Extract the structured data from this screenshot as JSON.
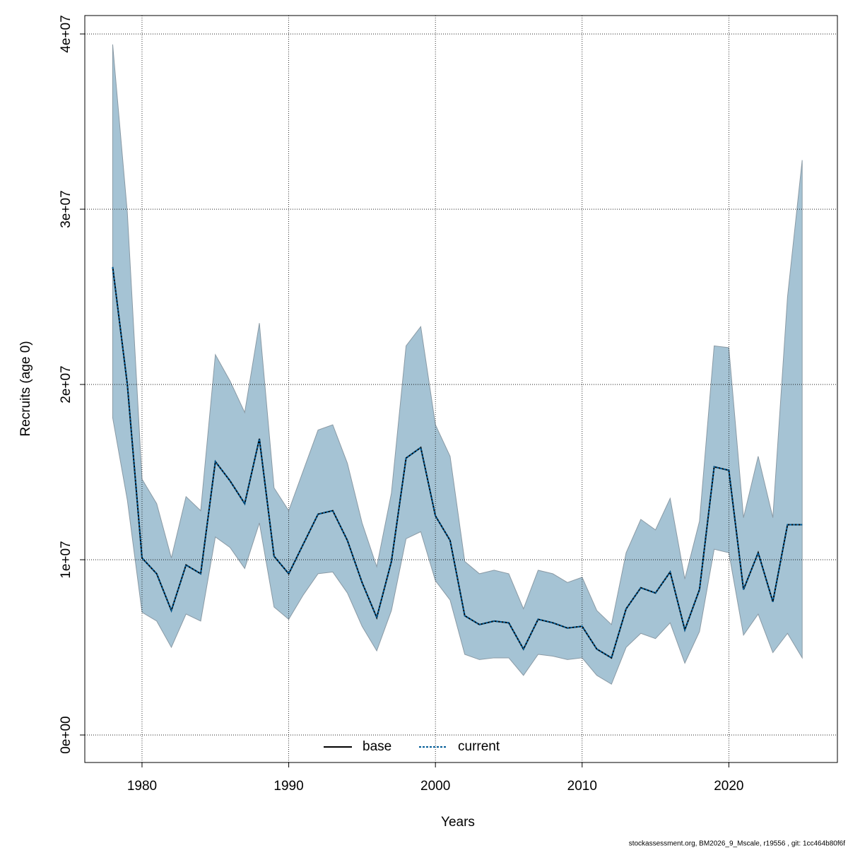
{
  "chart_data": {
    "type": "line",
    "x_label": "Years",
    "y_label": "Recruits (age 0)",
    "footer": "stockassessment.org, BM2026_9_Mscale, r19556 , git: 1cc464b80f6f",
    "x": [
      1978,
      1979,
      1980,
      1981,
      1982,
      1983,
      1984,
      1985,
      1986,
      1987,
      1988,
      1989,
      1990,
      1991,
      1992,
      1993,
      1994,
      1995,
      1996,
      1997,
      1998,
      1999,
      2000,
      2001,
      2002,
      2003,
      2004,
      2005,
      2006,
      2007,
      2008,
      2009,
      2010,
      2011,
      2012,
      2013,
      2014,
      2015,
      2016,
      2017,
      2018,
      2019,
      2020,
      2021,
      2022,
      2023,
      2024,
      2025
    ],
    "series": [
      {
        "name": "base",
        "color": "#000000",
        "dash": false,
        "values": [
          26700000.0,
          20000000.0,
          10100000.0,
          9200000.0,
          7100000.0,
          9700000.0,
          9200000.0,
          15600000.0,
          14500000.0,
          13200000.0,
          16900000.0,
          10200000.0,
          9200000.0,
          10900000.0,
          12600000.0,
          12800000.0,
          11100000.0,
          8700000.0,
          6700000.0,
          9900000.0,
          15800000.0,
          16400000.0,
          12500000.0,
          11100000.0,
          6800000.0,
          6300000.0,
          6500000.0,
          6400000.0,
          4900000.0,
          6600000.0,
          6400000.0,
          6100000.0,
          6200000.0,
          4900000.0,
          4400000.0,
          7200000.0,
          8400000.0,
          8100000.0,
          9300000.0,
          6000000.0,
          8300000.0,
          15300000.0,
          15100000.0,
          8300000.0,
          10400000.0,
          7600000.0,
          12000000.0,
          12000000.0
        ]
      },
      {
        "name": "current",
        "color": "#005b96",
        "dash": true,
        "values": [
          26700000.0,
          20000000.0,
          10100000.0,
          9200000.0,
          7100000.0,
          9700000.0,
          9200000.0,
          15600000.0,
          14500000.0,
          13200000.0,
          16900000.0,
          10200000.0,
          9200000.0,
          10900000.0,
          12600000.0,
          12800000.0,
          11100000.0,
          8700000.0,
          6700000.0,
          9900000.0,
          15800000.0,
          16400000.0,
          12500000.0,
          11100000.0,
          6800000.0,
          6300000.0,
          6500000.0,
          6400000.0,
          4900000.0,
          6600000.0,
          6400000.0,
          6100000.0,
          6200000.0,
          4900000.0,
          4400000.0,
          7200000.0,
          8400000.0,
          8100000.0,
          9300000.0,
          6000000.0,
          8300000.0,
          15300000.0,
          15100000.0,
          8300000.0,
          10400000.0,
          7600000.0,
          12000000.0,
          12000000.0
        ]
      }
    ],
    "band": {
      "color": "#a5c3d4",
      "upper": [
        39400000.0,
        29800000.0,
        14600000.0,
        13200000.0,
        10100000.0,
        13600000.0,
        12800000.0,
        21700000.0,
        20200000.0,
        18400000.0,
        23500000.0,
        14100000.0,
        12800000.0,
        15100000.0,
        17400000.0,
        17700000.0,
        15500000.0,
        12100000.0,
        9600000.0,
        13800000.0,
        22200000.0,
        23300000.0,
        17700000.0,
        15900000.0,
        9900000.0,
        9200000.0,
        9400000.0,
        9200000.0,
        7200000.0,
        9400000.0,
        9200000.0,
        8700000.0,
        9000000.0,
        7100000.0,
        6300000.0,
        10400000.0,
        12300000.0,
        11700000.0,
        13500000.0,
        8900000.0,
        12200000.0,
        22200000.0,
        22100000.0,
        12400000.0,
        15900000.0,
        12400000.0,
        25000000.0,
        32800000.0
      ],
      "lower": [
        18100000.0,
        13400000.0,
        7000000.0,
        6500000.0,
        5000000.0,
        6900000.0,
        6500000.0,
        11300000.0,
        10700000.0,
        9500000.0,
        12100000.0,
        7300000.0,
        6600000.0,
        8000000.0,
        9200000.0,
        9300000.0,
        8100000.0,
        6200000.0,
        4800000.0,
        7100000.0,
        11200000.0,
        11600000.0,
        8800000.0,
        7700000.0,
        4600000.0,
        4300000.0,
        4400000.0,
        4400000.0,
        3400000.0,
        4600000.0,
        4500000.0,
        4300000.0,
        4400000.0,
        3400000.0,
        2900000.0,
        5000000.0,
        5800000.0,
        5500000.0,
        6400000.0,
        4100000.0,
        5900000.0,
        10600000.0,
        10400000.0,
        5700000.0,
        6900000.0,
        4700000.0,
        5800000.0,
        4400000.0
      ]
    },
    "xlim": [
      1976.1,
      2027.4
    ],
    "ylim": [
      -1570000,
      41050000
    ],
    "xticks": [
      1980,
      1990,
      2000,
      2010,
      2020
    ],
    "yticks": [
      {
        "value": 0,
        "label": "0e+00"
      },
      {
        "value": 10000000,
        "label": "1e+07"
      },
      {
        "value": 20000000,
        "label": "2e+07"
      },
      {
        "value": 30000000,
        "label": "3e+07"
      },
      {
        "value": 40000000,
        "label": "4e+07"
      }
    ],
    "grid": true,
    "legend_position": "bottom"
  }
}
